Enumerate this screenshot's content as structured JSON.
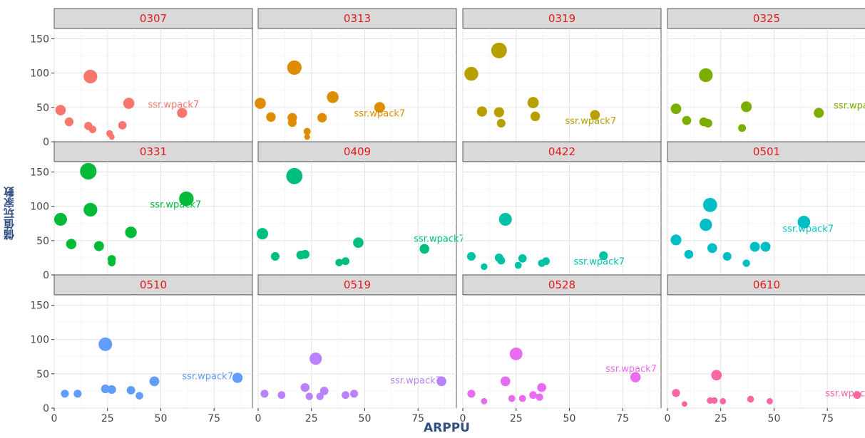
{
  "chart_data": {
    "type": "scatter",
    "title": "",
    "xlabel": "ARPPU",
    "ylabel": "儲值玩家數",
    "xlim": [
      0,
      93
    ],
    "ylim": [
      0,
      165
    ],
    "x_ticks": [
      "0",
      "25",
      "50",
      "75"
    ],
    "y_ticks": [
      "0",
      "50",
      "100",
      "150"
    ],
    "size_encoding": "point size proportional to value",
    "label_text": "ssr.wpack7",
    "facets": [
      {
        "name": "0307",
        "color": "#F8766D",
        "points": [
          [
            3,
            46
          ],
          [
            7,
            29
          ],
          [
            16,
            23
          ],
          [
            18,
            18
          ],
          [
            26,
            12
          ],
          [
            27,
            7
          ],
          [
            32,
            24
          ],
          [
            17,
            95
          ],
          [
            35,
            56
          ],
          [
            60,
            42
          ]
        ],
        "label_at": [
          44,
          50
        ]
      },
      {
        "name": "0313",
        "color": "#DE8C00",
        "points": [
          [
            1,
            56
          ],
          [
            6,
            36
          ],
          [
            16,
            35
          ],
          [
            16,
            28
          ],
          [
            23,
            15
          ],
          [
            23,
            7
          ],
          [
            30,
            35
          ],
          [
            17,
            108
          ],
          [
            35,
            65
          ],
          [
            57,
            50
          ]
        ],
        "label_at": [
          45,
          37
        ]
      },
      {
        "name": "0319",
        "color": "#B79F00",
        "points": [
          [
            4,
            99
          ],
          [
            9,
            44
          ],
          [
            17,
            43
          ],
          [
            18,
            27
          ],
          [
            33,
            57
          ],
          [
            34,
            37
          ],
          [
            17,
            133
          ],
          [
            62,
            39
          ]
        ],
        "label_at": [
          48,
          26
        ]
      },
      {
        "name": "0325",
        "color": "#7CAE00",
        "points": [
          [
            4,
            48
          ],
          [
            9,
            31
          ],
          [
            17,
            29
          ],
          [
            19,
            27
          ],
          [
            35,
            20
          ],
          [
            18,
            97
          ],
          [
            37,
            51
          ],
          [
            71,
            42
          ]
        ],
        "label_at": [
          78,
          48
        ]
      },
      {
        "name": "0331",
        "color": "#00BA38",
        "points": [
          [
            3,
            81
          ],
          [
            8,
            45
          ],
          [
            21,
            42
          ],
          [
            27,
            23
          ],
          [
            27,
            18
          ],
          [
            16,
            151
          ],
          [
            17,
            95
          ],
          [
            36,
            62
          ],
          [
            62,
            111
          ]
        ],
        "label_at": [
          45,
          98
        ]
      },
      {
        "name": "0409",
        "color": "#00BF7D",
        "points": [
          [
            2,
            60
          ],
          [
            8,
            27
          ],
          [
            20,
            29
          ],
          [
            22,
            30
          ],
          [
            38,
            18
          ],
          [
            41,
            20
          ],
          [
            47,
            47
          ],
          [
            17,
            144
          ],
          [
            78,
            38
          ]
        ],
        "label_at": [
          73,
          48
        ]
      },
      {
        "name": "0422",
        "color": "#00C1A3",
        "points": [
          [
            4,
            27
          ],
          [
            10,
            12
          ],
          [
            17,
            25
          ],
          [
            18,
            21
          ],
          [
            26,
            14
          ],
          [
            28,
            24
          ],
          [
            37,
            17
          ],
          [
            39,
            20
          ],
          [
            20,
            81
          ],
          [
            66,
            28
          ]
        ],
        "label_at": [
          52,
          15
        ]
      },
      {
        "name": "0501",
        "color": "#00BFC4",
        "points": [
          [
            4,
            51
          ],
          [
            10,
            30
          ],
          [
            21,
            39
          ],
          [
            28,
            27
          ],
          [
            37,
            17
          ],
          [
            18,
            73
          ],
          [
            20,
            102
          ],
          [
            41,
            41
          ],
          [
            46,
            41
          ],
          [
            64,
            77
          ]
        ],
        "label_at": [
          54,
          63
        ]
      },
      {
        "name": "0510",
        "color": "#619CFF",
        "points": [
          [
            5,
            21
          ],
          [
            11,
            21
          ],
          [
            24,
            28
          ],
          [
            27,
            27
          ],
          [
            36,
            26
          ],
          [
            40,
            18
          ],
          [
            24,
            93
          ],
          [
            47,
            39
          ],
          [
            86,
            44
          ]
        ],
        "label_at": [
          60,
          42
        ]
      },
      {
        "name": "0519",
        "color": "#B983FF",
        "points": [
          [
            3,
            21
          ],
          [
            11,
            19
          ],
          [
            22,
            30
          ],
          [
            24,
            17
          ],
          [
            29,
            17
          ],
          [
            31,
            25
          ],
          [
            41,
            19
          ],
          [
            45,
            21
          ],
          [
            27,
            72
          ],
          [
            86,
            39
          ]
        ],
        "label_at": [
          62,
          36
        ]
      },
      {
        "name": "0528",
        "color": "#E76BF3",
        "points": [
          [
            4,
            21
          ],
          [
            10,
            10
          ],
          [
            20,
            39
          ],
          [
            23,
            14
          ],
          [
            28,
            14
          ],
          [
            33,
            19
          ],
          [
            36,
            16
          ],
          [
            37,
            30
          ],
          [
            25,
            79
          ],
          [
            81,
            45
          ]
        ],
        "label_at": [
          67,
          53
        ]
      },
      {
        "name": "0610",
        "color": "#FF67A4",
        "points": [
          [
            4,
            22
          ],
          [
            8,
            6
          ],
          [
            20,
            11
          ],
          [
            22,
            11
          ],
          [
            26,
            10
          ],
          [
            39,
            13
          ],
          [
            48,
            10
          ],
          [
            23,
            48
          ],
          [
            89,
            19
          ]
        ],
        "label_at": [
          74,
          17
        ]
      }
    ]
  }
}
